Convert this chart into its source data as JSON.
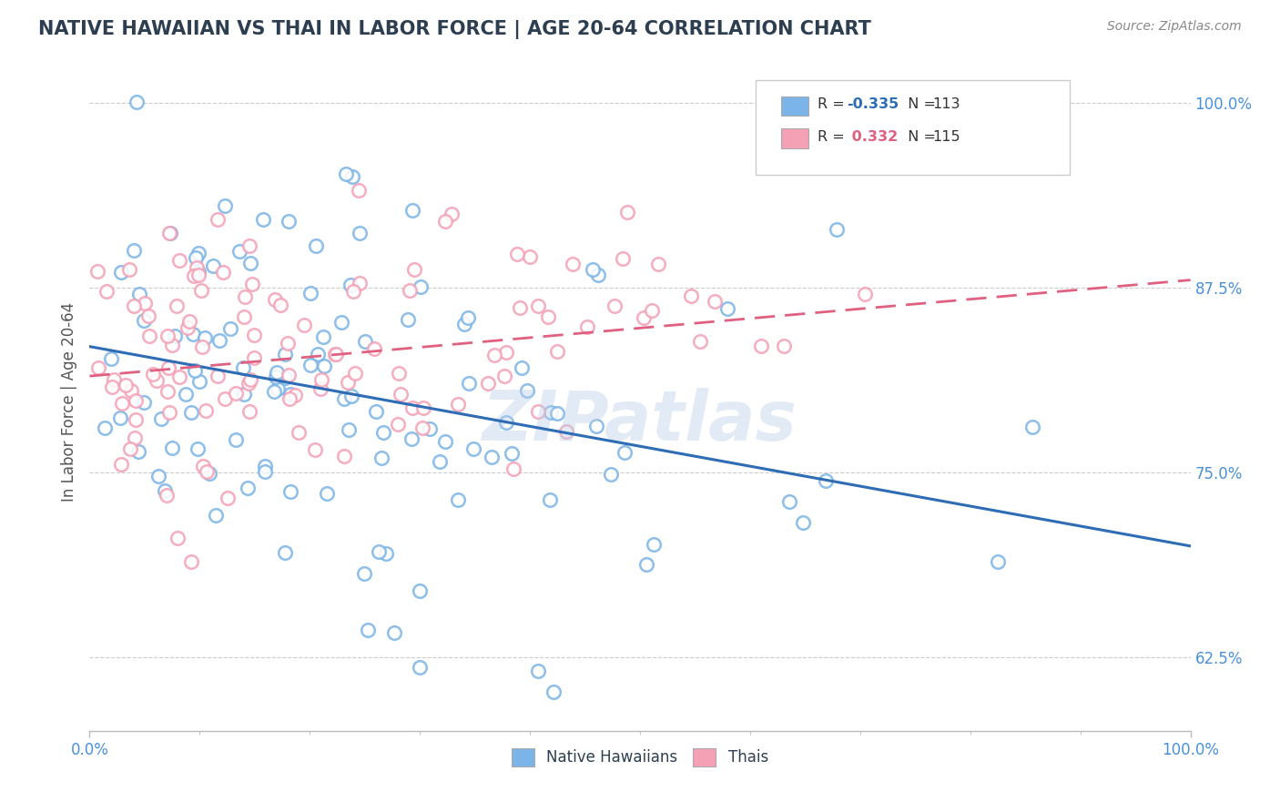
{
  "title": "NATIVE HAWAIIAN VS THAI IN LABOR FORCE | AGE 20-64 CORRELATION CHART",
  "source_text": "Source: ZipAtlas.com",
  "ylabel": "In Labor Force | Age 20-64",
  "xlim": [
    0.0,
    1.0
  ],
  "ylim": [
    0.575,
    1.02
  ],
  "yticks": [
    0.625,
    0.75,
    0.875,
    1.0
  ],
  "ytick_labels": [
    "62.5%",
    "75.0%",
    "87.5%",
    "100.0%"
  ],
  "xtick_labels": [
    "0.0%",
    "100.0%"
  ],
  "blue_color": "#7ab4e8",
  "pink_color": "#f4a0b5",
  "blue_line_color": "#2e6db5",
  "pink_line_color": "#e06080",
  "axis_color": "#4a90d9",
  "title_color": "#2c3e50",
  "source_color": "#888888",
  "watermark_color": "#b8cfe8",
  "grid_color": "#cccccc",
  "R_blue": -0.335,
  "R_pink": 0.332,
  "N_blue": 113,
  "N_pink": 115,
  "blue_seed": 42,
  "pink_seed": 99,
  "blue_intercept": 0.835,
  "blue_slope": -0.135,
  "pink_intercept": 0.815,
  "pink_slope": 0.065,
  "legend_r_blue": "#2e6db5",
  "legend_r_pink": "#e06080",
  "legend_n_color": "#2c3e50"
}
